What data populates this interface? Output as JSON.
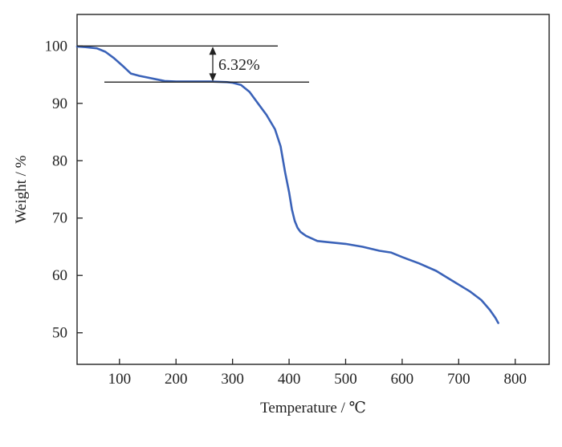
{
  "chart_data": {
    "type": "line",
    "title": "",
    "xlabel": "Temperature / ℃",
    "ylabel": "Weight / %",
    "xlim": [
      25,
      860
    ],
    "ylim": [
      44.5,
      105.5
    ],
    "xticks": [
      100,
      200,
      300,
      400,
      500,
      600,
      700,
      800
    ],
    "yticks": [
      50,
      60,
      70,
      80,
      90,
      100
    ],
    "xtick_labels": [
      "100",
      "200",
      "300",
      "400",
      "500",
      "600",
      "700",
      "800"
    ],
    "ytick_labels": [
      "50",
      "60",
      "70",
      "80",
      "90",
      "100"
    ],
    "grid": false,
    "legend": "none",
    "series": [
      {
        "color": "#3a62b8",
        "x": [
          25,
          40,
          60,
          75,
          90,
          105,
          120,
          135,
          150,
          165,
          180,
          200,
          230,
          260,
          290,
          300,
          315,
          330,
          345,
          360,
          375,
          385,
          393,
          400,
          405,
          410,
          415,
          420,
          430,
          450,
          470,
          500,
          530,
          560,
          580,
          600,
          630,
          660,
          690,
          720,
          740,
          755,
          765,
          770
        ],
        "y": [
          99.9,
          99.8,
          99.6,
          99.0,
          97.9,
          96.6,
          95.2,
          94.8,
          94.5,
          94.2,
          93.9,
          93.8,
          93.8,
          93.8,
          93.7,
          93.6,
          93.2,
          92.0,
          90.0,
          88.0,
          85.5,
          82.5,
          78.0,
          74.5,
          71.5,
          69.5,
          68.3,
          67.6,
          66.9,
          66.0,
          65.8,
          65.5,
          65.0,
          64.3,
          64.0,
          63.2,
          62.1,
          60.8,
          59.0,
          57.2,
          55.7,
          54.0,
          52.6,
          51.7
        ]
      }
    ],
    "annotations": [
      {
        "text": "6.32%",
        "upper_level": 100,
        "lower_level": 93.7,
        "x": 265
      }
    ]
  }
}
